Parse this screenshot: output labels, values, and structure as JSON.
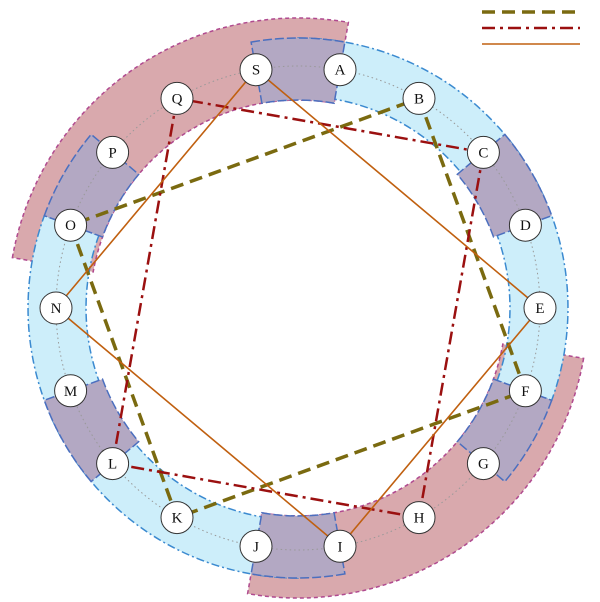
{
  "colors": {
    "pink_fill": "#d9a9ad",
    "pink_stroke": "#b04a8f",
    "blue_fill": "#cdeefa",
    "blue_stroke": "#3b8ad0",
    "overlap_fill": "#b3a8c3",
    "overlap_stroke": "#4b6fbf",
    "dashed_olive": "#7a6a10",
    "dashdot_red": "#9b1010",
    "solid_orange": "#c06010",
    "node_stroke": "#333333",
    "node_fill": "#ffffff"
  },
  "legend": [
    {
      "style": "dashed",
      "color": "#7a6a10"
    },
    {
      "style": "dashdot",
      "color": "#9b1010"
    },
    {
      "style": "solid",
      "color": "#c06010"
    }
  ],
  "nodes": [
    {
      "label": "A"
    },
    {
      "label": "B"
    },
    {
      "label": "C"
    },
    {
      "label": "D"
    },
    {
      "label": "E"
    },
    {
      "label": "F"
    },
    {
      "label": "G"
    },
    {
      "label": "H"
    },
    {
      "label": "I"
    },
    {
      "label": "J"
    },
    {
      "label": "K"
    },
    {
      "label": "L"
    },
    {
      "label": "M"
    },
    {
      "label": "N"
    },
    {
      "label": "O"
    },
    {
      "label": "P"
    },
    {
      "label": "Q"
    },
    {
      "label": "S"
    }
  ],
  "polygons": [
    {
      "style": "dashed",
      "nodes": [
        "B",
        "F",
        "K",
        "O"
      ]
    },
    {
      "style": "dashdot",
      "nodes": [
        "C",
        "H",
        "L",
        "Q"
      ]
    },
    {
      "style": "solid",
      "nodes": [
        "E",
        "I",
        "N",
        "S"
      ]
    }
  ]
}
